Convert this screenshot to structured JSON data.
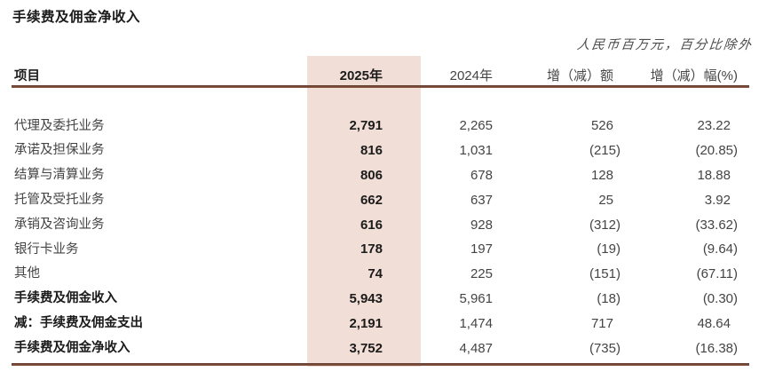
{
  "title": "手续费及佣金净收入",
  "note": "人民币百万元，百分比除外",
  "columns": {
    "item": "项目",
    "y2025": "2025年",
    "y2024": "2024年",
    "change": "增（减）额",
    "pct": "增（减）幅(%)"
  },
  "rows": [
    {
      "label": "代理及委托业务",
      "y2025": "2,791",
      "y2024": "2,265",
      "change": "526",
      "pct": "23.22",
      "bold": false
    },
    {
      "label": "承诺及担保业务",
      "y2025": "816",
      "y2024": "1,031",
      "change": "(215)",
      "pct": "(20.85)",
      "bold": false
    },
    {
      "label": "结算与清算业务",
      "y2025": "806",
      "y2024": "678",
      "change": "128",
      "pct": "18.88",
      "bold": false
    },
    {
      "label": "托管及受托业务",
      "y2025": "662",
      "y2024": "637",
      "change": "25",
      "pct": "3.92",
      "bold": false
    },
    {
      "label": "承销及咨询业务",
      "y2025": "616",
      "y2024": "928",
      "change": "(312)",
      "pct": "(33.62)",
      "bold": false
    },
    {
      "label": "银行卡业务",
      "y2025": "178",
      "y2024": "197",
      "change": "(19)",
      "pct": "(9.64)",
      "bold": false
    },
    {
      "label": "其他",
      "y2025": "74",
      "y2024": "225",
      "change": "(151)",
      "pct": "(67.11)",
      "bold": false
    },
    {
      "label": "手续费及佣金收入",
      "y2025": "5,943",
      "y2024": "5,961",
      "change": "(18)",
      "pct": "(0.30)",
      "bold": true
    },
    {
      "label": "减：手续费及佣金支出",
      "y2025": "2,191",
      "y2024": "1,474",
      "change": "717",
      "pct": "48.64",
      "bold": true
    },
    {
      "label": "手续费及佣金净收入",
      "y2025": "3,752",
      "y2024": "4,487",
      "change": "(735)",
      "pct": "(16.38)",
      "bold": true
    }
  ],
  "colors": {
    "highlight_band": "#f1ded6",
    "rule_dark": "#5e382a",
    "rule_light": "#8d5b45",
    "text_regular": "#444444",
    "text_bold": "#1b1b1b"
  }
}
